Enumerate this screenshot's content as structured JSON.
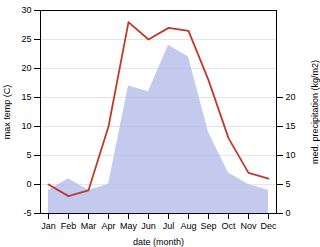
{
  "chart_data": {
    "type": "line",
    "categories": [
      "Jan",
      "Feb",
      "Mar",
      "Apr",
      "May",
      "Jun",
      "Jul",
      "Aug",
      "Sep",
      "Oct",
      "Nov",
      "Dec"
    ],
    "series": [
      {
        "type": "area",
        "axis": "y2",
        "color": "#b0b8e8",
        "values": [
          4.0,
          6.0,
          4.0,
          5.0,
          22.0,
          21.0,
          29.0,
          27.0,
          14.0,
          7.0,
          5.0,
          4.0
        ]
      },
      {
        "type": "line",
        "color": "#c0392b",
        "values": [
          0.0,
          -2.0,
          -1.0,
          10.0,
          28.0,
          25.0,
          27.0,
          26.5,
          18.0,
          8.0,
          2.0,
          1.0
        ]
      }
    ],
    "xlabel": "date (month)",
    "ylabel": "max temp (C)",
    "y2label": "med. precipitation (kg/m2)",
    "ylim": [
      -5,
      30
    ],
    "yticks": [
      -5,
      0,
      5,
      10,
      15,
      20,
      25,
      30
    ],
    "y2lim": [
      0,
      35
    ],
    "y2ticks": [
      0,
      5,
      10,
      15,
      20
    ],
    "grid": true
  }
}
